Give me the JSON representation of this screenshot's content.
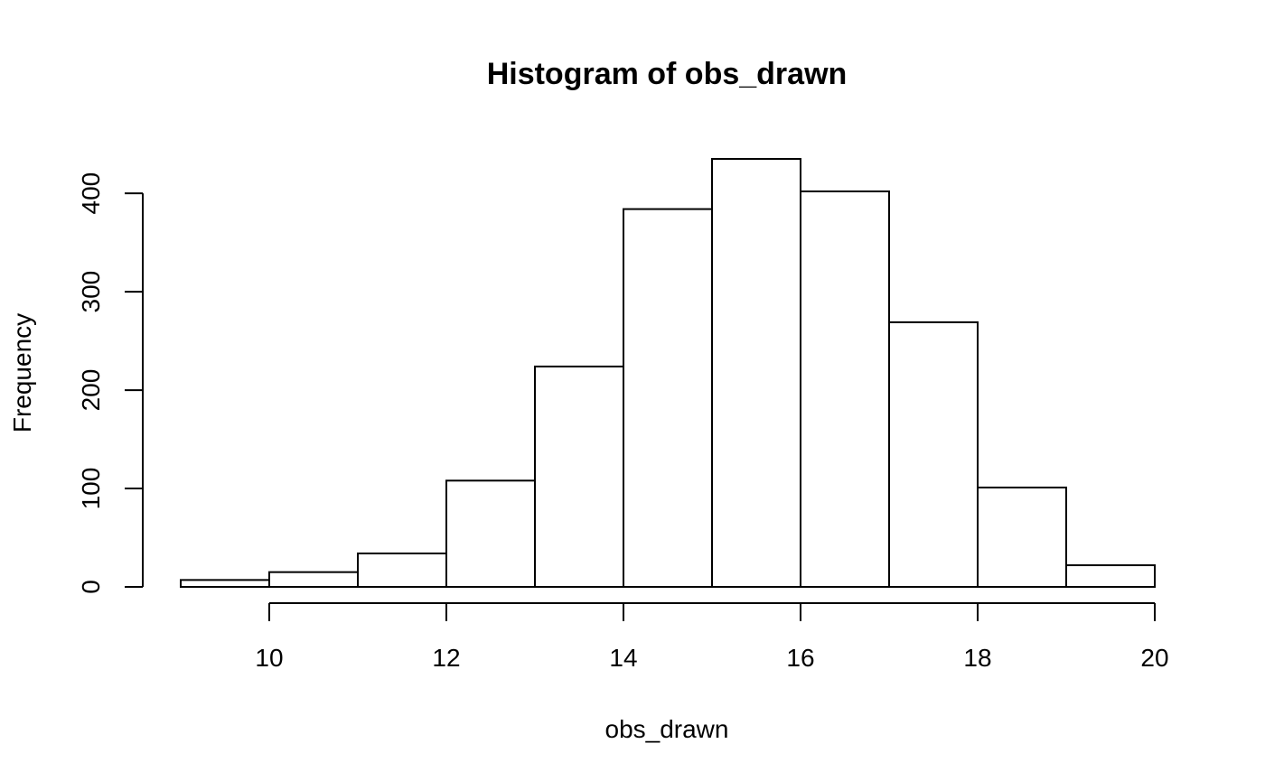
{
  "chart_data": {
    "type": "bar",
    "title": "Histogram of obs_drawn",
    "xlabel": "obs_drawn",
    "ylabel": "Frequency",
    "bins": [
      {
        "start": 9,
        "end": 10,
        "count": 7
      },
      {
        "start": 10,
        "end": 11,
        "count": 15
      },
      {
        "start": 11,
        "end": 12,
        "count": 34
      },
      {
        "start": 12,
        "end": 13,
        "count": 108
      },
      {
        "start": 13,
        "end": 14,
        "count": 224
      },
      {
        "start": 14,
        "end": 15,
        "count": 384
      },
      {
        "start": 15,
        "end": 16,
        "count": 435
      },
      {
        "start": 16,
        "end": 17,
        "count": 402
      },
      {
        "start": 17,
        "end": 18,
        "count": 269
      },
      {
        "start": 18,
        "end": 19,
        "count": 101
      },
      {
        "start": 19,
        "end": 20,
        "count": 22
      }
    ],
    "xlim": [
      9,
      20
    ],
    "ylim": [
      0,
      435
    ],
    "x_ticks": [
      10,
      12,
      14,
      16,
      18,
      20
    ],
    "y_ticks": [
      0,
      100,
      200,
      300,
      400
    ],
    "grid": false,
    "legend": "none",
    "colors": {
      "bar_fill": "#ffffff",
      "bar_stroke": "#000000",
      "background": "#ffffff"
    }
  }
}
